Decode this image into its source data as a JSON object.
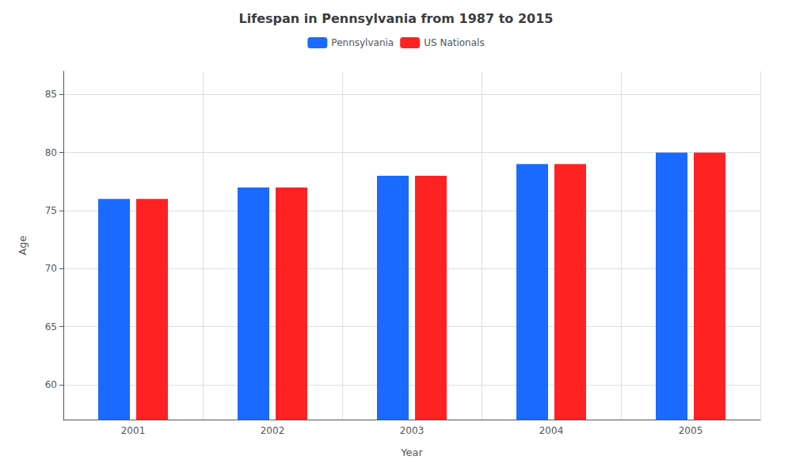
{
  "chart_data": {
    "type": "bar",
    "title": "Lifespan in Pennsylvania from 1987 to 2015",
    "x_label": "Year",
    "y_label": "Age",
    "categories": [
      "2001",
      "2002",
      "2003",
      "2004",
      "2005"
    ],
    "series": [
      {
        "name": "Pennsylvania",
        "color": "#1a6aff",
        "values": [
          76,
          77,
          78,
          79,
          80
        ]
      },
      {
        "name": "US Nationals",
        "color": "#ff2222",
        "values": [
          76,
          77,
          78,
          79,
          80
        ]
      }
    ],
    "ylim": [
      57,
      87
    ],
    "yticks": [
      60,
      65,
      70,
      75,
      80,
      85
    ],
    "grid": true,
    "legend": "top"
  }
}
